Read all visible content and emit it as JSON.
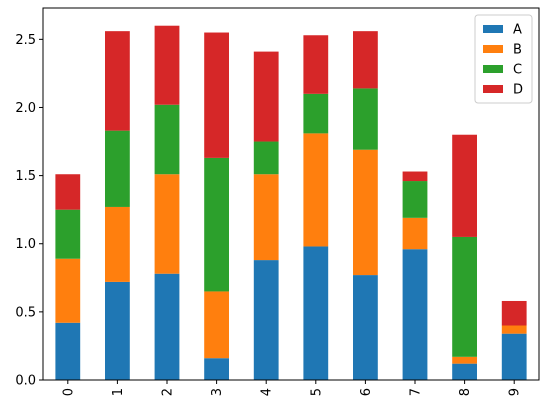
{
  "chart_data": {
    "type": "bar",
    "stacked": true,
    "categories": [
      "0",
      "1",
      "2",
      "3",
      "4",
      "5",
      "6",
      "7",
      "8",
      "9"
    ],
    "series": [
      {
        "name": "A",
        "color": "#1f77b4",
        "values": [
          0.42,
          0.72,
          0.78,
          0.16,
          0.88,
          0.98,
          0.77,
          0.96,
          0.12,
          0.34
        ]
      },
      {
        "name": "B",
        "color": "#ff7f0e",
        "values": [
          0.47,
          0.55,
          0.73,
          0.49,
          0.63,
          0.83,
          0.92,
          0.23,
          0.05,
          0.06
        ]
      },
      {
        "name": "C",
        "color": "#2ca02c",
        "values": [
          0.36,
          0.56,
          0.51,
          0.98,
          0.24,
          0.29,
          0.45,
          0.27,
          0.88,
          0.0
        ]
      },
      {
        "name": "D",
        "color": "#d62728",
        "values": [
          0.26,
          0.73,
          0.58,
          0.92,
          0.66,
          0.43,
          0.42,
          0.07,
          0.75,
          0.18
        ]
      }
    ],
    "yticks": [
      0.0,
      0.5,
      1.0,
      1.5,
      2.0,
      2.5
    ],
    "ytick_labels": [
      "0.0",
      "0.5",
      "1.0",
      "1.5",
      "2.0",
      "2.5"
    ],
    "ylim": [
      0,
      2.73
    ],
    "xtick_rotation": "vertical",
    "title": "",
    "xlabel": "",
    "ylabel": "",
    "grid": false,
    "legend_position": "top-right"
  }
}
